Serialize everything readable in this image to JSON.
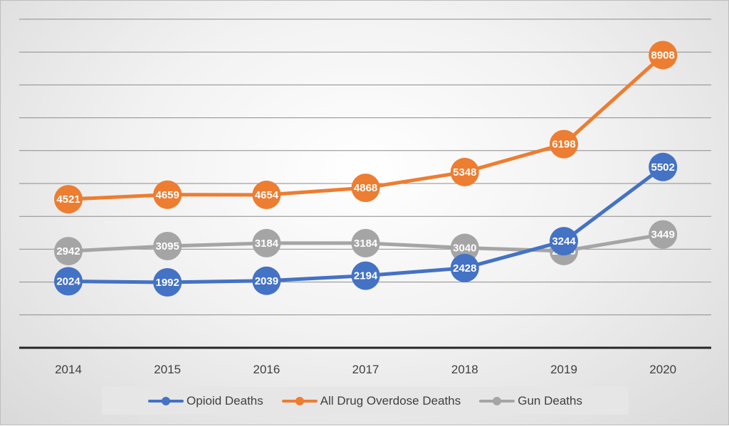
{
  "chart_data": {
    "type": "line",
    "categories": [
      "2014",
      "2015",
      "2016",
      "2017",
      "2018",
      "2019",
      "2020"
    ],
    "series": [
      {
        "name": "Opioid Deaths",
        "color": "#4472C4",
        "values": [
          2024,
          1992,
          2039,
          2194,
          2428,
          3244,
          5502
        ]
      },
      {
        "name": "All Drug Overdose Deaths",
        "color": "#ED7D31",
        "values": [
          4521,
          4659,
          4654,
          4868,
          5348,
          6198,
          8908
        ]
      },
      {
        "name": "Gun Deaths",
        "color": "#A5A5A5",
        "values": [
          2942,
          3095,
          3184,
          3184,
          3040,
          2945,
          3449
        ]
      }
    ],
    "ylim": [
      0,
      10000
    ],
    "y_gridline_step": 1000,
    "y_tick_labels_shown": false,
    "grid": true,
    "data_labels": true,
    "legend_position": "bottom",
    "title": "",
    "xlabel": "",
    "ylabel": ""
  }
}
